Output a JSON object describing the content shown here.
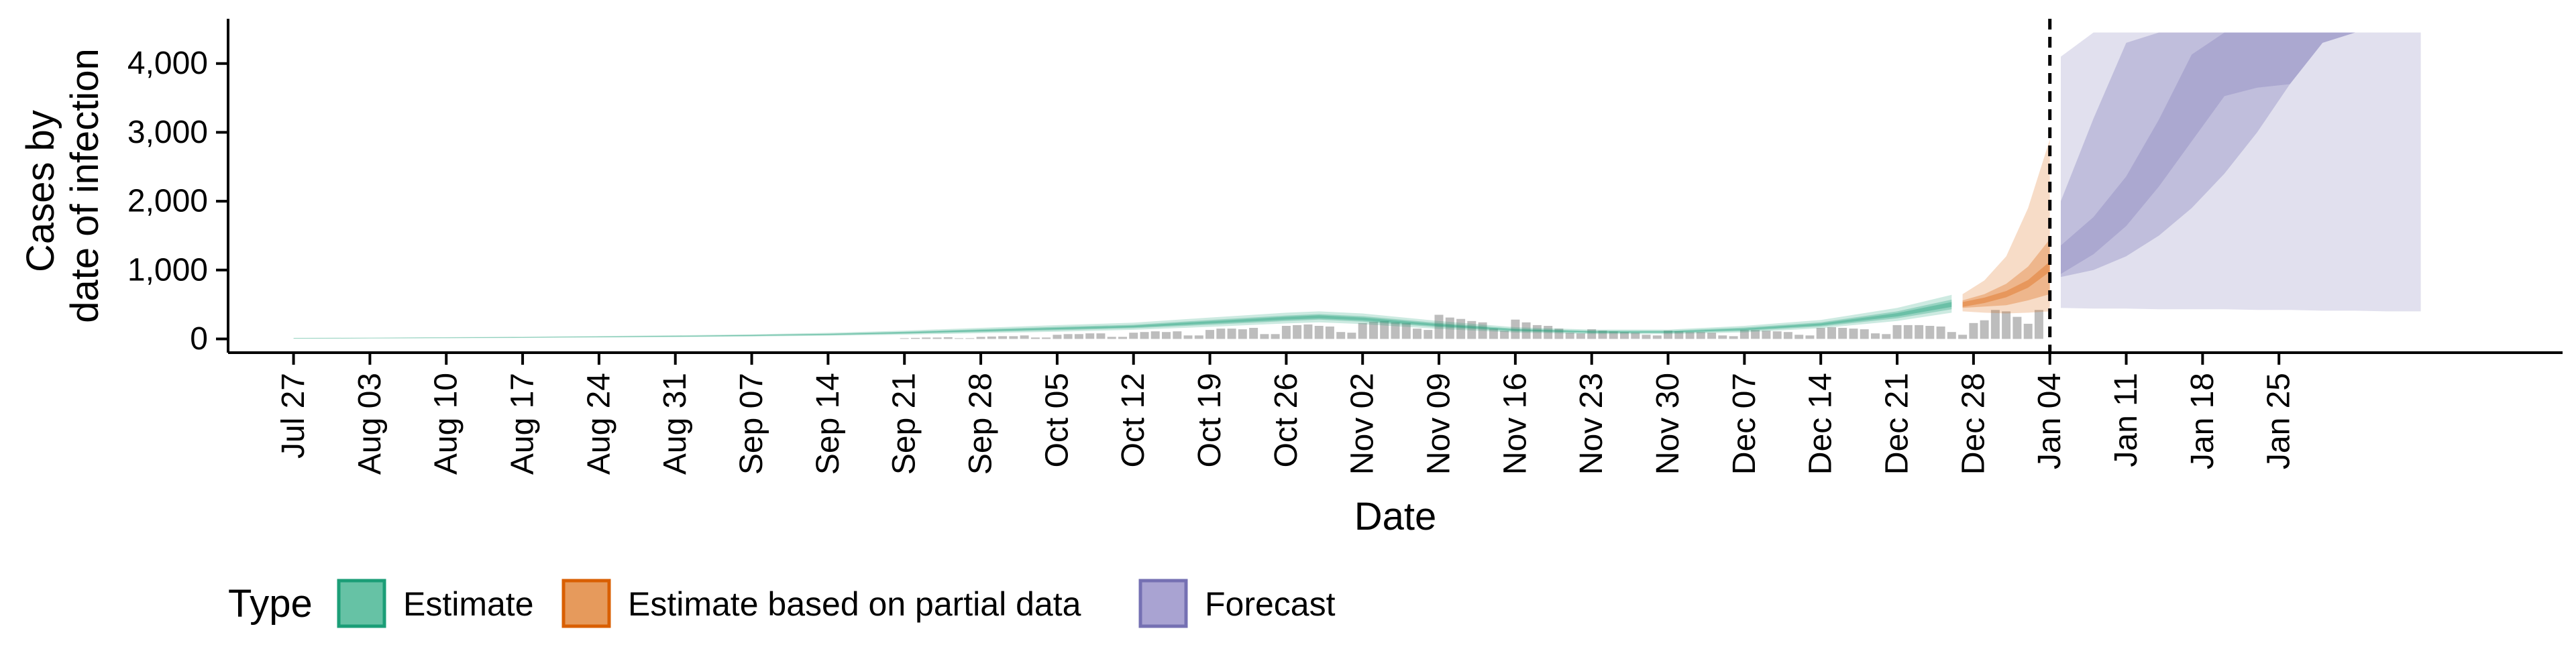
{
  "chart_data": {
    "type": "area",
    "title": "",
    "xlabel": "Date",
    "ylabel": [
      "Cases by",
      "date of infection"
    ],
    "x_start": "2020-07-27",
    "x_ticks": [
      "Jul 27",
      "Aug 03",
      "Aug 10",
      "Aug 17",
      "Aug 24",
      "Aug 31",
      "Sep 07",
      "Sep 14",
      "Sep 21",
      "Sep 28",
      "Oct 05",
      "Oct 12",
      "Oct 19",
      "Oct 26",
      "Nov 02",
      "Nov 09",
      "Nov 16",
      "Nov 23",
      "Nov 30",
      "Dec 07",
      "Dec 14",
      "Dec 21",
      "Dec 28",
      "Jan 04",
      "Jan 11",
      "Jan 18",
      "Jan 25"
    ],
    "y_ticks": [
      0,
      1000,
      2000,
      3000,
      4000
    ],
    "y_tick_labels": [
      "0",
      "1,000",
      "2,000",
      "3,000",
      "4,000"
    ],
    "ylim": [
      -200,
      4650
    ],
    "xlim": [
      -6,
      208
    ],
    "forecast_date_day": 161,
    "grid": false,
    "legend_position": "bottom",
    "legend": {
      "title": "Type",
      "items": [
        {
          "label": "Estimate",
          "fill": "#66c2a5",
          "stroke": "#1b9e77"
        },
        {
          "label": "Estimate based on partial data",
          "fill": "#e69a5c",
          "stroke": "#d95f02"
        },
        {
          "label": "Forecast",
          "fill": "#a9a3d2",
          "stroke": "#7570b3"
        }
      ]
    },
    "colors": {
      "bars": "#bdbdbd",
      "estimate": "#1b9e77",
      "partial": "#d95f02",
      "forecast": "#7570b3",
      "forecast_line": "#000000"
    },
    "observed_cases": {
      "note": "Daily reported cases by date (day index from Jul 27), shown as grey bars",
      "start_day": 56,
      "values": [
        10,
        15,
        20,
        20,
        25,
        10,
        10,
        30,
        35,
        40,
        40,
        50,
        20,
        20,
        60,
        70,
        70,
        80,
        80,
        30,
        30,
        90,
        100,
        110,
        100,
        110,
        50,
        50,
        130,
        150,
        150,
        140,
        160,
        70,
        70,
        190,
        200,
        210,
        190,
        180,
        100,
        90,
        230,
        250,
        260,
        240,
        230,
        150,
        130,
        350,
        310,
        290,
        260,
        240,
        150,
        120,
        280,
        240,
        200,
        190,
        150,
        90,
        80,
        140,
        120,
        110,
        100,
        90,
        60,
        50,
        120,
        110,
        100,
        100,
        90,
        50,
        40,
        130,
        130,
        120,
        110,
        100,
        60,
        50,
        160,
        170,
        160,
        150,
        140,
        80,
        70,
        200,
        200,
        200,
        190,
        180,
        100,
        60,
        230,
        270,
        420,
        400,
        320,
        220,
        420
      ]
    },
    "series": [
      {
        "name": "Estimate",
        "x": [
          0,
          7,
          14,
          21,
          28,
          35,
          42,
          49,
          56,
          63,
          70,
          77,
          84,
          91,
          94,
          98,
          105,
          112,
          119,
          126,
          133,
          140,
          147,
          152
        ],
        "median": [
          8,
          12,
          16,
          22,
          30,
          38,
          50,
          65,
          90,
          120,
          150,
          180,
          240,
          300,
          320,
          290,
          200,
          130,
          100,
          100,
          140,
          210,
          350,
          500
        ],
        "lower50": [
          5,
          9,
          12,
          18,
          25,
          32,
          42,
          55,
          75,
          100,
          125,
          155,
          205,
          260,
          280,
          250,
          170,
          110,
          85,
          85,
          115,
          180,
          300,
          430
        ],
        "upper50": [
          11,
          15,
          20,
          27,
          36,
          45,
          58,
          76,
          105,
          140,
          175,
          205,
          275,
          340,
          360,
          330,
          230,
          150,
          118,
          118,
          165,
          240,
          400,
          570
        ],
        "lower90": [
          3,
          6,
          9,
          14,
          20,
          26,
          35,
          45,
          62,
          82,
          105,
          132,
          175,
          225,
          240,
          215,
          145,
          92,
          70,
          70,
          95,
          155,
          260,
          380
        ],
        "upper90": [
          14,
          19,
          25,
          32,
          42,
          52,
          67,
          88,
          120,
          160,
          200,
          235,
          310,
          380,
          400,
          370,
          260,
          170,
          135,
          135,
          190,
          275,
          450,
          640
        ]
      },
      {
        "name": "Estimate based on partial data",
        "x": [
          153,
          155,
          157,
          159,
          161
        ],
        "median": [
          500,
          560,
          650,
          800,
          1050
        ],
        "lower50": [
          450,
          470,
          490,
          560,
          650
        ],
        "upper50": [
          560,
          650,
          800,
          1050,
          1450
        ],
        "lower90": [
          400,
          380,
          370,
          380,
          400
        ],
        "upper90": [
          650,
          850,
          1200,
          1900,
          2900
        ]
      },
      {
        "name": "Forecast",
        "x": [
          162,
          165,
          168,
          171,
          174,
          177,
          180,
          183,
          186,
          189,
          192,
          195
        ],
        "median": [
          1150,
          1500,
          2000,
          2700,
          3500,
          4300,
          4450,
          4450,
          4450,
          4450,
          4450,
          4450
        ],
        "lower50": [
          900,
          1000,
          1200,
          1500,
          1900,
          2400,
          3000,
          3700,
          4300,
          4450,
          4450,
          4450
        ],
        "upper50": [
          2000,
          3200,
          4300,
          4450,
          4450,
          4450,
          4450,
          4450,
          4450,
          4450,
          4450,
          4450
        ],
        "lower90": [
          450,
          440,
          440,
          430,
          430,
          430,
          420,
          420,
          410,
          410,
          400,
          400
        ],
        "upper90": [
          4100,
          4450,
          4450,
          4450,
          4450,
          4450,
          4450,
          4450,
          4450,
          4450,
          4450,
          4450
        ]
      }
    ]
  }
}
